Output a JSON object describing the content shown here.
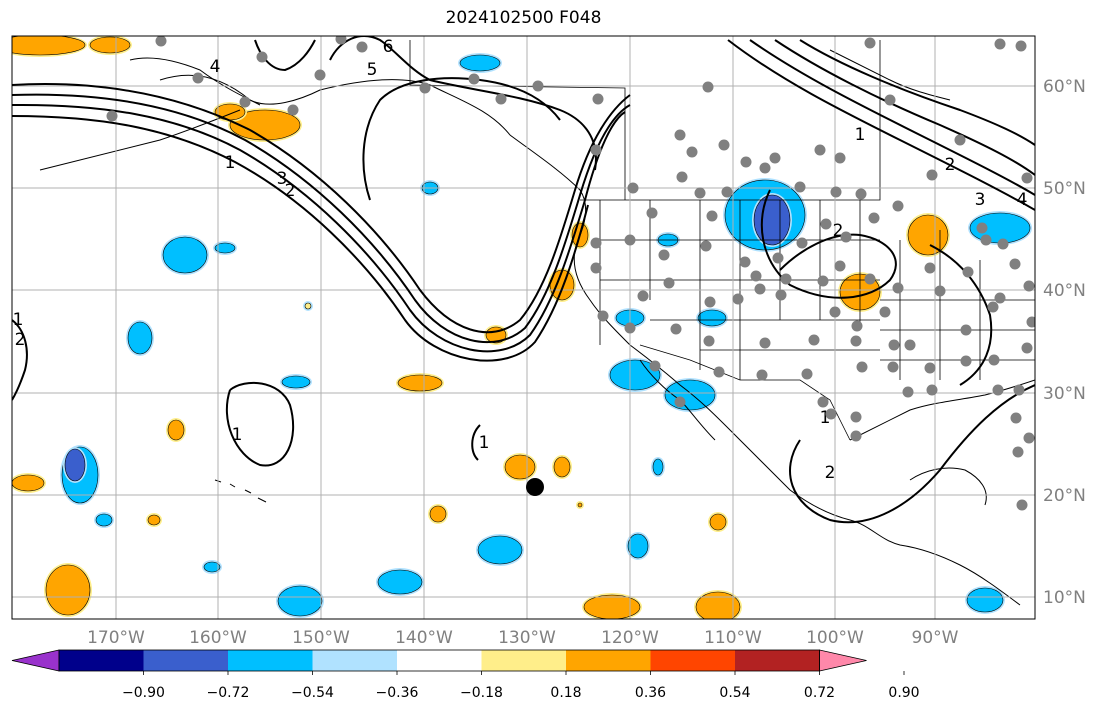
{
  "title": "2024102500 F048",
  "lon_ticks": [
    "170°W",
    "160°W",
    "150°W",
    "140°W",
    "130°W",
    "120°W",
    "110°W",
    "100°W",
    "90°W"
  ],
  "lat_ticks": [
    "60°N",
    "50°N",
    "40°N",
    "30°N",
    "20°N",
    "10°N"
  ],
  "colorbar": {
    "labels": [
      "−0.90",
      "−0.72",
      "−0.54",
      "−0.36",
      "−0.18",
      "0.18",
      "0.36",
      "0.54",
      "0.72",
      "0.90"
    ],
    "colors": [
      "#9932cc",
      "#00008b",
      "#3a5fcd",
      "#00bfff",
      "#b0e2ff",
      "#ffffff",
      "#ffee8a",
      "#ffa500",
      "#ff4500",
      "#b22222",
      "#ff88aa"
    ]
  },
  "contour_labels": [
    "1",
    "2",
    "3",
    "4",
    "5",
    "6",
    "1",
    "2",
    "1",
    "1",
    "2",
    "3",
    "4",
    "2",
    "1",
    "2",
    "1"
  ],
  "colors": {
    "orange": "#ffa500",
    "light_yellow": "#ffee8a",
    "sky": "#00bfff",
    "light_blue": "#b0e2ff",
    "blue": "#3a5fcd",
    "station": "#808080",
    "grid": "#b0b0b0"
  }
}
